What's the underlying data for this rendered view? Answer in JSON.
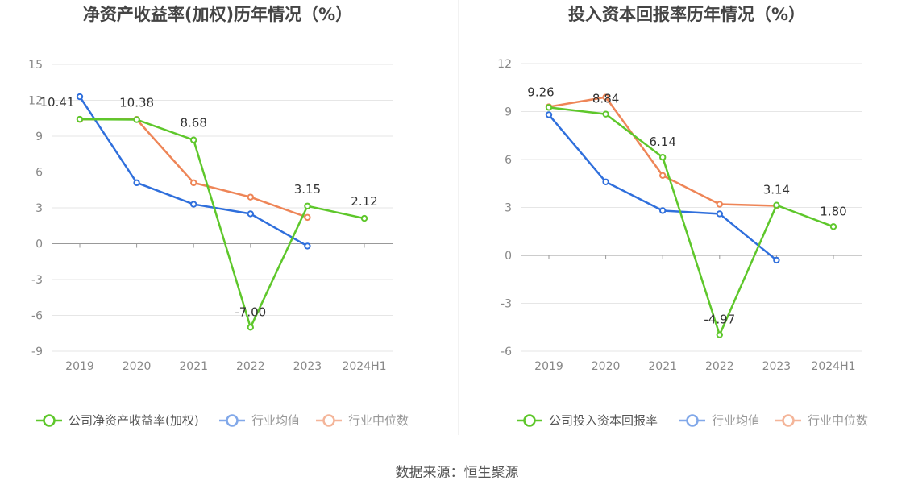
{
  "source": "数据来源：恒生聚源",
  "colors": {
    "company": "#5ec72b",
    "avg": "#2f6fdc",
    "median": "#ee8557",
    "grid": "#e6e6e6",
    "axis": "#999999"
  },
  "chart_data": [
    {
      "type": "line",
      "title": "净资产收益率(加权)历年情况（%）",
      "categories": [
        "2019",
        "2020",
        "2021",
        "2022",
        "2023",
        "2024H1"
      ],
      "yticks": [
        "15",
        "12",
        "9",
        "6",
        "3",
        "0",
        "-3",
        "-6",
        "-9"
      ],
      "ylim": [
        -9,
        15
      ],
      "grid": true,
      "legend_position": "bottom",
      "series": [
        {
          "name": "公司净资产收益率(加权)",
          "key": "company",
          "values": [
            10.41,
            10.38,
            8.68,
            -7.0,
            3.15,
            2.12
          ],
          "labels": [
            "10.41",
            "10.38",
            "8.68",
            "-7.00",
            "3.15",
            "2.12"
          ]
        },
        {
          "name": "行业均值",
          "key": "avg",
          "values": [
            12.3,
            5.1,
            3.3,
            2.5,
            -0.2,
            null
          ]
        },
        {
          "name": "行业中位数",
          "key": "median",
          "values": [
            10.4,
            10.4,
            5.1,
            3.9,
            2.2,
            null
          ]
        }
      ]
    },
    {
      "type": "line",
      "title": "投入资本回报率历年情况（%）",
      "categories": [
        "2019",
        "2020",
        "2021",
        "2022",
        "2023",
        "2024H1"
      ],
      "yticks": [
        "12",
        "9",
        "6",
        "3",
        "0",
        "-3",
        "-6"
      ],
      "ylim": [
        -6,
        12
      ],
      "grid": true,
      "legend_position": "bottom",
      "series": [
        {
          "name": "公司投入资本回报率",
          "key": "company",
          "values": [
            9.26,
            8.84,
            6.14,
            -4.97,
            3.14,
            1.8
          ],
          "labels": [
            "9.26",
            "8.84",
            "6.14",
            "-4.97",
            "3.14",
            "1.80"
          ]
        },
        {
          "name": "行业均值",
          "key": "avg",
          "values": [
            8.8,
            4.6,
            2.8,
            2.6,
            -0.3,
            null
          ]
        },
        {
          "name": "行业中位数",
          "key": "median",
          "values": [
            9.3,
            9.9,
            5.0,
            3.2,
            3.1,
            null
          ]
        }
      ]
    }
  ]
}
